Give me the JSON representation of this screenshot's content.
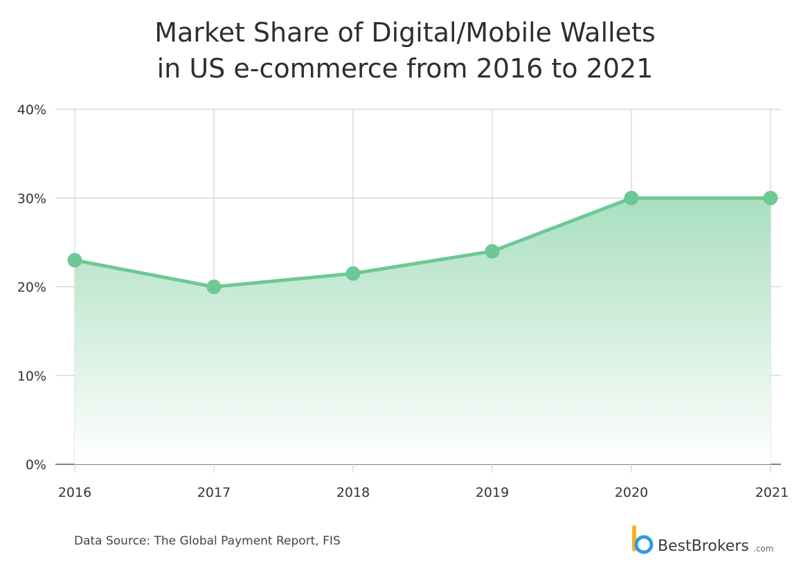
{
  "title_lines": [
    "Market Share of Digital/Mobile Wallets",
    "in US e-commerce from 2016 to 2021"
  ],
  "source": "Data Source: The Global Payment Report, FIS",
  "brand": {
    "name": "BestBrokers",
    "domain": ".com"
  },
  "colors": {
    "line": "#6dc894",
    "fill_top": "#a9dfbf",
    "fill_bottom": "#ffffff",
    "grid": "#c8c8c8",
    "axis": "#555555"
  },
  "chart_data": {
    "type": "area",
    "title": "Market Share of Digital/Mobile Wallets in US e-commerce from 2016 to 2021",
    "categories": [
      "2016",
      "2017",
      "2018",
      "2019",
      "2020",
      "2021"
    ],
    "values": [
      23,
      20,
      21.5,
      24,
      30,
      30
    ],
    "ylim": [
      0,
      40
    ],
    "yticks": [
      0,
      10,
      20,
      30,
      40
    ],
    "ytick_labels": [
      "0%",
      "10%",
      "20%",
      "30%",
      "40%"
    ],
    "xlabel": "",
    "ylabel": "",
    "grid": true,
    "markers": true
  }
}
